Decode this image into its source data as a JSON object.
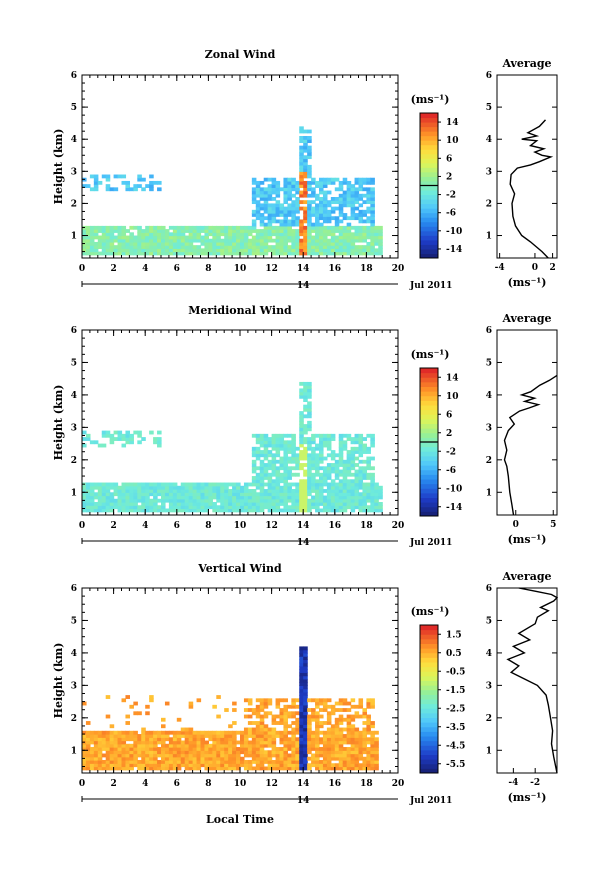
{
  "footer": {
    "xlabel": "Local Time"
  },
  "chart_data": [
    {
      "type": "heatmap",
      "title": "Zonal Wind",
      "ylabel": "Height (km)",
      "x_range": [
        0,
        20
      ],
      "y_range": [
        0.3,
        6
      ],
      "x_ticks": [
        "0",
        "2",
        "4",
        "6",
        "8",
        "10",
        "12",
        "14",
        "16",
        "18",
        "20"
      ],
      "y_ticks": [
        "1",
        "2",
        "3",
        "4",
        "5",
        "6"
      ],
      "date_day": "14",
      "date_label": "Jul 2011",
      "colorbar_unit": "(ms⁻¹)",
      "colorbar_ticks": [
        "14",
        "10",
        "6",
        "2",
        "-2",
        "-6",
        "-10",
        "-14"
      ],
      "colorbar_range": [
        -16,
        16
      ],
      "colorbar_contour_value": 0,
      "profile": {
        "title": "Average",
        "xlabel": "(ms⁻¹)",
        "x_ticks": [
          "-4",
          "0",
          "2"
        ],
        "x_range": [
          -4.3,
          2.5
        ],
        "points": [
          [
            1.5,
            0.3
          ],
          [
            0.8,
            0.5
          ],
          [
            -0.5,
            0.8
          ],
          [
            -1.5,
            1.0
          ],
          [
            -2.2,
            1.3
          ],
          [
            -2.5,
            1.6
          ],
          [
            -2.6,
            2.0
          ],
          [
            -2.3,
            2.3
          ],
          [
            -2.8,
            2.6
          ],
          [
            -2.7,
            2.9
          ],
          [
            -2.0,
            3.1
          ],
          [
            -0.5,
            3.2
          ],
          [
            0.5,
            3.3
          ],
          [
            1.8,
            3.45
          ],
          [
            0.8,
            3.5
          ],
          [
            0.0,
            3.6
          ],
          [
            1.0,
            3.7
          ],
          [
            -0.5,
            3.8
          ],
          [
            0.2,
            3.95
          ],
          [
            -1.5,
            4.0
          ],
          [
            0.2,
            4.1
          ],
          [
            -0.8,
            4.2
          ],
          [
            0.5,
            4.4
          ],
          [
            1.2,
            4.6
          ]
        ]
      }
    },
    {
      "type": "heatmap",
      "title": "Meridional Wind",
      "ylabel": "Height (km)",
      "x_range": [
        0,
        20
      ],
      "y_range": [
        0.3,
        6
      ],
      "x_ticks": [
        "0",
        "2",
        "4",
        "6",
        "8",
        "10",
        "12",
        "14",
        "16",
        "18",
        "20"
      ],
      "y_ticks": [
        "1",
        "2",
        "3",
        "4",
        "5",
        "6"
      ],
      "date_day": "14",
      "date_label": "Jul 2011",
      "colorbar_unit": "(ms⁻¹)",
      "colorbar_ticks": [
        "14",
        "10",
        "6",
        "2",
        "-2",
        "-6",
        "-10",
        "-14"
      ],
      "colorbar_range": [
        -16,
        16
      ],
      "colorbar_contour_value": 0,
      "profile": {
        "title": "Average",
        "xlabel": "(ms⁻¹)",
        "x_ticks": [
          "0",
          "5"
        ],
        "x_range": [
          -2.5,
          5.5
        ],
        "points": [
          [
            -0.3,
            0.3
          ],
          [
            -0.5,
            0.6
          ],
          [
            -0.8,
            1.0
          ],
          [
            -1.0,
            1.5
          ],
          [
            -1.2,
            1.8
          ],
          [
            -1.5,
            2.0
          ],
          [
            -1.2,
            2.3
          ],
          [
            -1.5,
            2.6
          ],
          [
            -1.0,
            2.9
          ],
          [
            -0.2,
            3.1
          ],
          [
            -0.8,
            3.3
          ],
          [
            0.5,
            3.5
          ],
          [
            1.8,
            3.6
          ],
          [
            3.0,
            3.7
          ],
          [
            1.2,
            3.8
          ],
          [
            2.5,
            3.9
          ],
          [
            0.8,
            4.0
          ],
          [
            2.0,
            4.1
          ],
          [
            3.2,
            4.3
          ],
          [
            4.5,
            4.45
          ],
          [
            5.5,
            4.6
          ]
        ]
      }
    },
    {
      "type": "heatmap",
      "title": "Vertical Wind",
      "ylabel": "Height (km)",
      "x_range": [
        0,
        20
      ],
      "y_range": [
        0.3,
        6
      ],
      "x_ticks": [
        "0",
        "2",
        "4",
        "6",
        "8",
        "10",
        "12",
        "14",
        "16",
        "18",
        "20"
      ],
      "y_ticks": [
        "1",
        "2",
        "3",
        "4",
        "5",
        "6"
      ],
      "date_day": "14",
      "date_label": "Jul 2011",
      "colorbar_unit": "(ms⁻¹)",
      "colorbar_ticks": [
        "1.5",
        "0.5",
        "-0.5",
        "-1.5",
        "-2.5",
        "-3.5",
        "-4.5",
        "-5.5"
      ],
      "colorbar_range": [
        -6,
        2
      ],
      "colorbar_contour_value": null,
      "profile": {
        "title": "Average",
        "xlabel": "(ms⁻¹)",
        "x_ticks": [
          "-4",
          "-2"
        ],
        "x_range": [
          -5.5,
          0
        ],
        "points": [
          [
            0,
            0.3
          ],
          [
            -0.3,
            0.8
          ],
          [
            -0.5,
            1.2
          ],
          [
            -0.4,
            1.6
          ],
          [
            -0.6,
            2.0
          ],
          [
            -0.8,
            2.4
          ],
          [
            -1.0,
            2.7
          ],
          [
            -1.8,
            3.0
          ],
          [
            -3.0,
            3.2
          ],
          [
            -4.2,
            3.4
          ],
          [
            -3.5,
            3.6
          ],
          [
            -4.5,
            3.8
          ],
          [
            -3.0,
            4.0
          ],
          [
            -4.0,
            4.2
          ],
          [
            -2.5,
            4.4
          ],
          [
            -3.5,
            4.6
          ],
          [
            -2.0,
            4.9
          ],
          [
            -1.8,
            5.1
          ],
          [
            -0.8,
            5.3
          ],
          [
            -1.5,
            5.4
          ],
          [
            -0.3,
            5.6
          ],
          [
            0,
            5.7
          ],
          [
            -0.5,
            5.8
          ],
          [
            -2.0,
            5.9
          ],
          [
            -3.5,
            6.0
          ]
        ]
      }
    }
  ]
}
